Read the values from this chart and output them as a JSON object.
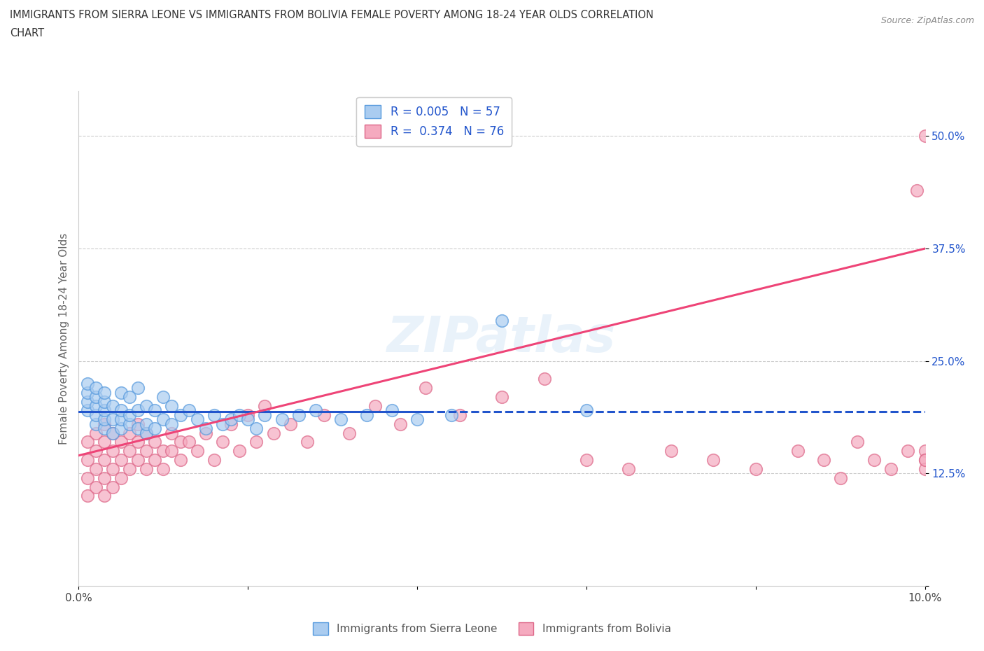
{
  "title_line1": "IMMIGRANTS FROM SIERRA LEONE VS IMMIGRANTS FROM BOLIVIA FEMALE POVERTY AMONG 18-24 YEAR OLDS CORRELATION",
  "title_line2": "CHART",
  "source": "Source: ZipAtlas.com",
  "ylabel": "Female Poverty Among 18-24 Year Olds",
  "xmin": 0.0,
  "xmax": 0.1,
  "ymin": 0.0,
  "ymax": 0.55,
  "sierra_leone_color": "#aaccf0",
  "sierra_leone_edge": "#5599dd",
  "bolivia_color": "#f5aabf",
  "bolivia_edge": "#dd6688",
  "trend_sierra_color": "#2255cc",
  "trend_bolivia_color": "#ee4477",
  "R_sierra": 0.005,
  "N_sierra": 57,
  "R_bolivia": 0.374,
  "N_bolivia": 76,
  "sierra_leone_x": [
    0.001,
    0.001,
    0.001,
    0.001,
    0.002,
    0.002,
    0.002,
    0.002,
    0.002,
    0.003,
    0.003,
    0.003,
    0.003,
    0.003,
    0.004,
    0.004,
    0.004,
    0.005,
    0.005,
    0.005,
    0.005,
    0.006,
    0.006,
    0.006,
    0.007,
    0.007,
    0.007,
    0.008,
    0.008,
    0.008,
    0.009,
    0.009,
    0.01,
    0.01,
    0.011,
    0.011,
    0.012,
    0.013,
    0.014,
    0.015,
    0.016,
    0.017,
    0.018,
    0.019,
    0.02,
    0.021,
    0.022,
    0.024,
    0.026,
    0.028,
    0.031,
    0.034,
    0.037,
    0.04,
    0.044,
    0.05,
    0.06
  ],
  "sierra_leone_y": [
    0.195,
    0.205,
    0.215,
    0.225,
    0.18,
    0.19,
    0.2,
    0.21,
    0.22,
    0.175,
    0.185,
    0.195,
    0.205,
    0.215,
    0.17,
    0.185,
    0.2,
    0.175,
    0.185,
    0.195,
    0.215,
    0.18,
    0.19,
    0.21,
    0.175,
    0.195,
    0.22,
    0.17,
    0.18,
    0.2,
    0.175,
    0.195,
    0.185,
    0.21,
    0.18,
    0.2,
    0.19,
    0.195,
    0.185,
    0.175,
    0.19,
    0.18,
    0.185,
    0.19,
    0.185,
    0.175,
    0.19,
    0.185,
    0.19,
    0.195,
    0.185,
    0.19,
    0.195,
    0.185,
    0.19,
    0.295,
    0.195
  ],
  "bolivia_x": [
    0.001,
    0.001,
    0.001,
    0.001,
    0.002,
    0.002,
    0.002,
    0.002,
    0.003,
    0.003,
    0.003,
    0.003,
    0.003,
    0.004,
    0.004,
    0.004,
    0.004,
    0.005,
    0.005,
    0.005,
    0.006,
    0.006,
    0.006,
    0.007,
    0.007,
    0.007,
    0.008,
    0.008,
    0.008,
    0.009,
    0.009,
    0.01,
    0.01,
    0.011,
    0.011,
    0.012,
    0.012,
    0.013,
    0.014,
    0.015,
    0.016,
    0.017,
    0.018,
    0.019,
    0.02,
    0.021,
    0.022,
    0.023,
    0.025,
    0.027,
    0.029,
    0.032,
    0.035,
    0.038,
    0.041,
    0.045,
    0.05,
    0.055,
    0.06,
    0.065,
    0.07,
    0.075,
    0.08,
    0.085,
    0.088,
    0.09,
    0.092,
    0.094,
    0.096,
    0.098,
    0.099,
    0.1,
    0.1,
    0.1,
    0.1,
    0.1
  ],
  "bolivia_y": [
    0.14,
    0.12,
    0.16,
    0.1,
    0.13,
    0.15,
    0.17,
    0.11,
    0.14,
    0.16,
    0.12,
    0.18,
    0.1,
    0.15,
    0.13,
    0.17,
    0.11,
    0.16,
    0.14,
    0.12,
    0.17,
    0.15,
    0.13,
    0.18,
    0.14,
    0.16,
    0.13,
    0.15,
    0.17,
    0.14,
    0.16,
    0.15,
    0.13,
    0.17,
    0.15,
    0.16,
    0.14,
    0.16,
    0.15,
    0.17,
    0.14,
    0.16,
    0.18,
    0.15,
    0.19,
    0.16,
    0.2,
    0.17,
    0.18,
    0.16,
    0.19,
    0.17,
    0.2,
    0.18,
    0.22,
    0.19,
    0.21,
    0.23,
    0.14,
    0.13,
    0.15,
    0.14,
    0.13,
    0.15,
    0.14,
    0.12,
    0.16,
    0.14,
    0.13,
    0.15,
    0.44,
    0.5,
    0.15,
    0.14,
    0.13,
    0.14
  ]
}
